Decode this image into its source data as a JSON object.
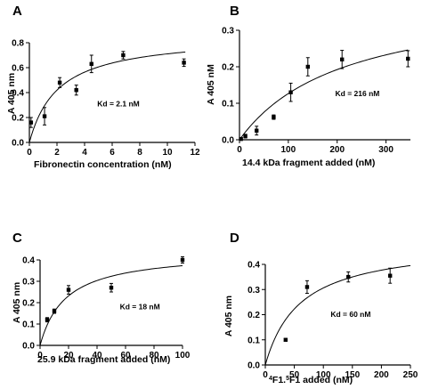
{
  "chart_data": [
    {
      "panel": "A",
      "type": "scatter",
      "title": "",
      "xlabel": "Fibronectin concentration (nM)",
      "ylabel": "A 405 nm",
      "annotation": "Kd = 2.1 nM",
      "xlim": [
        0,
        12
      ],
      "ylim": [
        0,
        0.8
      ],
      "xticks": [
        0,
        2,
        4,
        6,
        8,
        10,
        12
      ],
      "yticks": [
        0.0,
        0.2,
        0.4,
        0.6,
        0.8
      ],
      "ytick_labels": [
        "0.0",
        "0.2",
        "0.4",
        "0.6",
        "0.8"
      ],
      "fit": {
        "kind": "saturation",
        "bmax": 0.86,
        "kd": 2.1,
        "x_end": 11.3
      },
      "points": [
        {
          "x": 0.12,
          "y": 0.16,
          "err": 0.04
        },
        {
          "x": 1.1,
          "y": 0.21,
          "err": 0.07
        },
        {
          "x": 2.2,
          "y": 0.48,
          "err": 0.04
        },
        {
          "x": 3.4,
          "y": 0.42,
          "err": 0.04
        },
        {
          "x": 4.5,
          "y": 0.63,
          "err": 0.07
        },
        {
          "x": 6.8,
          "y": 0.7,
          "err": 0.03
        },
        {
          "x": 11.2,
          "y": 0.64,
          "err": 0.03
        }
      ]
    },
    {
      "panel": "B",
      "type": "scatter",
      "title": "",
      "xlabel": "14.4 kDa fragment added (nM)",
      "ylabel": "A 405 nM",
      "annotation": "Kd = 216 nM",
      "xlim": [
        0,
        350
      ],
      "ylim": [
        0,
        0.3
      ],
      "xticks": [
        0,
        100,
        200,
        300
      ],
      "yticks": [
        0.0,
        0.1,
        0.2,
        0.3
      ],
      "ytick_labels": [
        "0.0",
        "0.1",
        "0.2",
        "0.3"
      ],
      "fit": {
        "kind": "saturation",
        "bmax": 0.4,
        "kd": 216,
        "x_end": 345
      },
      "points": [
        {
          "x": 3,
          "y": 0.002,
          "err": 0.003
        },
        {
          "x": 12,
          "y": 0.01,
          "err": 0.005
        },
        {
          "x": 35,
          "y": 0.025,
          "err": 0.012
        },
        {
          "x": 70,
          "y": 0.062,
          "err": 0.006
        },
        {
          "x": 105,
          "y": 0.13,
          "err": 0.025
        },
        {
          "x": 140,
          "y": 0.2,
          "err": 0.025
        },
        {
          "x": 210,
          "y": 0.22,
          "err": 0.025
        },
        {
          "x": 345,
          "y": 0.222,
          "err": 0.022
        }
      ]
    },
    {
      "panel": "C",
      "type": "scatter",
      "title": "",
      "xlabel": "25.9 kDa fragment added (nM)",
      "ylabel": "A 405 nm",
      "annotation": "Kd = 18 nM",
      "xlim": [
        0,
        100
      ],
      "ylim": [
        0,
        0.4
      ],
      "xticks": [
        0,
        20,
        40,
        60,
        80,
        100
      ],
      "yticks": [
        0.0,
        0.1,
        0.2,
        0.3,
        0.4
      ],
      "ytick_labels": [
        "0.0",
        "0.1",
        "0.2",
        "0.3",
        "0.4"
      ],
      "fit": {
        "kind": "saturation",
        "bmax": 0.44,
        "kd": 18,
        "x_end": 100
      },
      "points": [
        {
          "x": 5,
          "y": 0.12,
          "err": 0.01
        },
        {
          "x": 10,
          "y": 0.16,
          "err": 0.01
        },
        {
          "x": 20,
          "y": 0.26,
          "err": 0.02
        },
        {
          "x": 50,
          "y": 0.27,
          "err": 0.02
        },
        {
          "x": 100,
          "y": 0.4,
          "err": 0.015
        }
      ]
    },
    {
      "panel": "D",
      "type": "scatter",
      "title": "",
      "xlabel_prefix_sup": "4",
      "xlabel_mid": "F1.",
      "xlabel_mid_sup": "5",
      "xlabel_rest": "F1 added (nM)",
      "ylabel": "A 405 nm",
      "annotation": "Kd = 60 nM",
      "xlim": [
        0,
        250
      ],
      "ylim": [
        0,
        0.4
      ],
      "xticks": [
        0,
        50,
        100,
        150,
        200,
        250
      ],
      "yticks": [
        0.0,
        0.1,
        0.2,
        0.3,
        0.4
      ],
      "ytick_labels": [
        "0.0",
        "0.1",
        "0.2",
        "0.3",
        "0.4"
      ],
      "fit": {
        "kind": "saturation",
        "bmax": 0.49,
        "kd": 60,
        "x_end": 250
      },
      "points": [
        {
          "x": 35,
          "y": 0.1,
          "err": 0.005
        },
        {
          "x": 72,
          "y": 0.31,
          "err": 0.025
        },
        {
          "x": 143,
          "y": 0.35,
          "err": 0.02
        },
        {
          "x": 215,
          "y": 0.355,
          "err": 0.03
        }
      ]
    }
  ]
}
